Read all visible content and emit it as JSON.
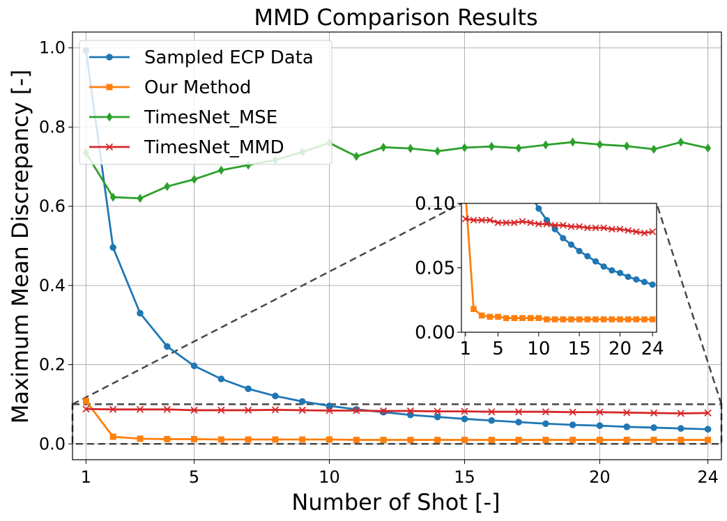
{
  "chart_data": {
    "type": "line",
    "title": "MMD Comparison Results",
    "xlabel": "Number of Shot [-]",
    "ylabel": "Maximum Mean Discrepancy [-]",
    "x": [
      1,
      2,
      3,
      4,
      5,
      6,
      7,
      8,
      9,
      10,
      11,
      12,
      13,
      14,
      15,
      16,
      17,
      18,
      19,
      20,
      21,
      22,
      23,
      24
    ],
    "xlim": [
      0.5,
      24.5
    ],
    "ylim": [
      -0.04,
      1.04
    ],
    "xticks": [
      1,
      5,
      10,
      15,
      20,
      24
    ],
    "yticks": [
      0.0,
      0.2,
      0.4,
      0.6,
      0.8,
      1.0
    ],
    "ytick_labels": [
      "0.0",
      "0.2",
      "0.4",
      "0.6",
      "0.8",
      "1.0"
    ],
    "grid": true,
    "legend_position": "top-left",
    "series": [
      {
        "name": "Sampled ECP Data",
        "color": "#1f77b4",
        "marker": "circle",
        "values": [
          0.993,
          0.496,
          0.33,
          0.246,
          0.197,
          0.164,
          0.139,
          0.121,
          0.107,
          0.096,
          0.087,
          0.08,
          0.073,
          0.068,
          0.063,
          0.059,
          0.055,
          0.051,
          0.048,
          0.046,
          0.043,
          0.041,
          0.039,
          0.037
        ]
      },
      {
        "name": "Our Method",
        "color": "#ff7f0e",
        "marker": "square",
        "values": [
          0.108,
          0.018,
          0.013,
          0.012,
          0.012,
          0.011,
          0.011,
          0.011,
          0.011,
          0.011,
          0.01,
          0.01,
          0.01,
          0.01,
          0.01,
          0.01,
          0.01,
          0.01,
          0.01,
          0.01,
          0.01,
          0.01,
          0.01,
          0.01
        ]
      },
      {
        "name": "TimesNet_MSE",
        "color": "#2ca02c",
        "marker": "diamond",
        "values": [
          0.735,
          0.623,
          0.62,
          0.65,
          0.668,
          0.691,
          0.704,
          0.717,
          0.737,
          0.76,
          0.726,
          0.749,
          0.746,
          0.739,
          0.748,
          0.751,
          0.747,
          0.755,
          0.762,
          0.756,
          0.752,
          0.744,
          0.762,
          0.747
        ]
      },
      {
        "name": "TimesNet_MMD",
        "color": "#d62728",
        "marker": "x",
        "values": [
          0.088,
          0.087,
          0.087,
          0.087,
          0.085,
          0.085,
          0.085,
          0.086,
          0.085,
          0.084,
          0.084,
          0.083,
          0.083,
          0.082,
          0.082,
          0.081,
          0.081,
          0.081,
          0.08,
          0.08,
          0.079,
          0.078,
          0.077,
          0.078
        ]
      }
    ],
    "inset": {
      "xlim": [
        0.5,
        24.5
      ],
      "ylim": [
        0.0,
        0.1
      ],
      "xticks": [
        1,
        5,
        10,
        15,
        20,
        24
      ],
      "yticks": [
        0.0,
        0.05,
        0.1
      ],
      "ytick_labels": [
        "0.00",
        "0.05",
        "0.10"
      ],
      "zoom_region": {
        "x": [
          0.5,
          24.5
        ],
        "y": [
          0.0,
          0.1
        ]
      }
    }
  }
}
